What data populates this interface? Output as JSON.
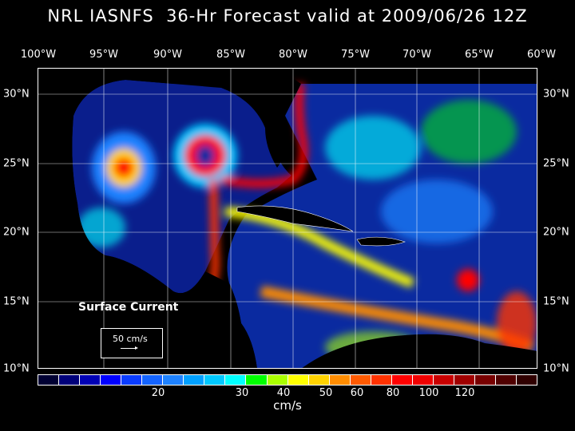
{
  "title": "NRL IASNFS  36-Hr Forecast valid at 2009/06/26 12Z",
  "lon_labels": [
    "100°W",
    "95°W",
    "90°W",
    "85°W",
    "80°W",
    "75°W",
    "70°W",
    "65°W",
    "60°W"
  ],
  "lat_labels": [
    "30°N",
    "25°N",
    "20°N",
    "15°N",
    "10°N"
  ],
  "legend": {
    "title": "Surface Current",
    "scale_label": "50 cm/s"
  },
  "colorbar": {
    "unit": "cm/s",
    "labels": [
      "20",
      "30",
      "40",
      "50",
      "60",
      "80",
      "100",
      "120"
    ],
    "colors": [
      "#000033",
      "#00007a",
      "#0000b4",
      "#0000ff",
      "#0a3cff",
      "#1464ff",
      "#1e82ff",
      "#00a0ff",
      "#00c8ff",
      "#00ffff",
      "#00ff00",
      "#aaff00",
      "#ffff00",
      "#ffd200",
      "#ff8c00",
      "#ff5a00",
      "#ff3200",
      "#ff0000",
      "#f00000",
      "#c80000",
      "#a00000",
      "#780000",
      "#500000",
      "#300000"
    ]
  }
}
